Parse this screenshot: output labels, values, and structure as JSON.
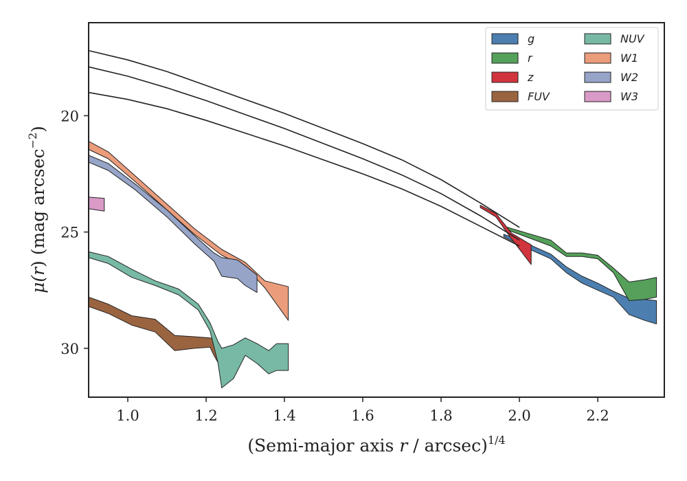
{
  "chart_data": {
    "type": "area",
    "xlabel": "(Semi-major axis r / arcsec)^1/4",
    "ylabel": "μ(r) (mag arcsec^−2)",
    "xlim": [
      0.9,
      2.37
    ],
    "ylim": [
      32.1,
      16.0
    ],
    "y_inverted": true,
    "x_ticks": [
      "1.0",
      "1.2",
      "1.4",
      "1.6",
      "1.8",
      "2.0",
      "2.2"
    ],
    "y_ticks": [
      "20",
      "25",
      "30"
    ],
    "legend_placement": "top-right",
    "profile_lines": [
      {
        "x": [
          0.9,
          1.0,
          1.1,
          1.2,
          1.3,
          1.4,
          1.5,
          1.6,
          1.7,
          1.8,
          1.9,
          2.0
        ],
        "y": [
          17.2,
          17.6,
          18.1,
          18.7,
          19.3,
          19.9,
          20.55,
          21.2,
          21.9,
          22.75,
          23.75,
          24.8
        ]
      },
      {
        "x": [
          0.9,
          1.0,
          1.1,
          1.2,
          1.3,
          1.4,
          1.5,
          1.6,
          1.7,
          1.8,
          1.9,
          2.0
        ],
        "y": [
          17.9,
          18.3,
          18.8,
          19.35,
          19.95,
          20.55,
          21.2,
          21.85,
          22.55,
          23.35,
          24.3,
          25.35
        ]
      },
      {
        "x": [
          0.9,
          1.0,
          1.1,
          1.2,
          1.3,
          1.4,
          1.5,
          1.6,
          1.7,
          1.8,
          1.9,
          2.0
        ],
        "y": [
          19.0,
          19.3,
          19.7,
          20.2,
          20.75,
          21.3,
          21.9,
          22.5,
          23.15,
          23.9,
          24.75,
          25.6
        ]
      }
    ],
    "series": [
      {
        "name": "g",
        "color": "#4c7fb0",
        "x": [
          1.96,
          2.0,
          2.04,
          2.08,
          2.12,
          2.16,
          2.2,
          2.24,
          2.28,
          2.32,
          2.35
        ],
        "y_upper": [
          25.1,
          25.35,
          25.65,
          25.95,
          26.5,
          26.9,
          27.2,
          27.55,
          27.85,
          27.9,
          27.95
        ],
        "y_lower": [
          25.2,
          25.55,
          25.85,
          26.15,
          26.75,
          27.2,
          27.5,
          27.8,
          28.55,
          28.8,
          28.95
        ]
      },
      {
        "name": "r",
        "color": "#55a05a",
        "x": [
          1.96,
          2.0,
          2.04,
          2.08,
          2.12,
          2.16,
          2.2,
          2.24,
          2.28,
          2.32,
          2.35
        ],
        "y_upper": [
          24.75,
          24.95,
          25.15,
          25.35,
          25.9,
          25.9,
          26.0,
          26.55,
          27.15,
          27.05,
          26.95
        ],
        "y_lower": [
          24.85,
          25.1,
          25.35,
          25.6,
          26.05,
          26.05,
          26.15,
          26.75,
          27.95,
          27.9,
          27.8
        ]
      },
      {
        "name": "z",
        "color": "#d1343d",
        "x": [
          1.9,
          1.94,
          1.98,
          2.03
        ],
        "y_upper": [
          23.85,
          24.2,
          25.05,
          25.55
        ],
        "y_lower": [
          23.95,
          24.35,
          25.3,
          26.4
        ]
      },
      {
        "name": "FUV",
        "color": "#9b6440",
        "x": [
          0.9,
          0.95,
          1.01,
          1.07,
          1.12,
          1.17,
          1.21,
          1.22,
          1.24
        ],
        "y_upper": [
          27.8,
          28.1,
          28.6,
          28.75,
          29.45,
          29.5,
          29.55,
          29.6,
          30.3
        ],
        "y_lower": [
          28.2,
          28.5,
          29.0,
          29.3,
          30.1,
          30.0,
          29.95,
          30.3,
          30.9
        ]
      },
      {
        "name": "NUV",
        "color": "#78b9a5",
        "x": [
          0.9,
          0.95,
          1.01,
          1.07,
          1.13,
          1.18,
          1.21,
          1.23,
          1.24,
          1.27,
          1.3,
          1.33,
          1.36,
          1.38,
          1.41
        ],
        "y_upper": [
          25.85,
          26.05,
          26.6,
          27.1,
          27.45,
          28.1,
          28.9,
          29.7,
          30.0,
          29.85,
          29.55,
          29.8,
          30.1,
          29.8,
          29.8
        ],
        "y_lower": [
          26.1,
          26.35,
          26.95,
          27.3,
          27.7,
          28.35,
          29.25,
          30.6,
          31.7,
          31.3,
          30.3,
          30.65,
          31.1,
          30.95,
          30.95
        ]
      },
      {
        "name": "W1",
        "color": "#ea9c7b",
        "x": [
          0.9,
          0.95,
          1.02,
          1.1,
          1.17,
          1.24,
          1.3,
          1.35,
          1.41
        ],
        "y_upper": [
          21.1,
          21.55,
          22.6,
          23.8,
          24.85,
          25.75,
          26.3,
          27.1,
          27.35
        ],
        "y_lower": [
          21.45,
          21.85,
          22.85,
          24.05,
          25.1,
          26.0,
          26.5,
          27.4,
          28.8
        ]
      },
      {
        "name": "W2",
        "color": "#96a4c8",
        "x": [
          0.9,
          0.95,
          1.02,
          1.1,
          1.17,
          1.22,
          1.24,
          1.28,
          1.3,
          1.33
        ],
        "y_upper": [
          21.7,
          22.05,
          22.95,
          24.05,
          25.15,
          25.9,
          26.1,
          26.2,
          26.45,
          26.85
        ],
        "y_lower": [
          22.0,
          22.35,
          23.2,
          24.35,
          25.5,
          26.25,
          26.9,
          27.0,
          27.3,
          27.6
        ]
      },
      {
        "name": "W3",
        "color": "#da9ac8",
        "x": [
          0.9,
          0.94
        ],
        "y_upper": [
          23.5,
          23.55
        ],
        "y_lower": [
          24.0,
          24.1
        ]
      }
    ]
  },
  "legend": {
    "columns": [
      [
        {
          "label": "g",
          "color": "#4c7fb0"
        },
        {
          "label": "r",
          "color": "#55a05a"
        },
        {
          "label": "z",
          "color": "#d1343d"
        },
        {
          "label": "FUV",
          "color": "#9b6440"
        }
      ],
      [
        {
          "label": "NUV",
          "color": "#78b9a5"
        },
        {
          "label": "W1",
          "color": "#ea9c7b"
        },
        {
          "label": "W2",
          "color": "#96a4c8"
        },
        {
          "label": "W3",
          "color": "#da9ac8"
        }
      ]
    ]
  },
  "axes": {
    "xlabel_main": "(Semi-major axis ",
    "xlabel_var": "r",
    "xlabel_tail": " / arcsec)",
    "xlabel_sup": "1/4",
    "ylabel_mu": "μ(",
    "ylabel_var": "r",
    "ylabel_tail": ") (mag arcsec",
    "ylabel_sup": "−2",
    "ylabel_close": ")"
  }
}
